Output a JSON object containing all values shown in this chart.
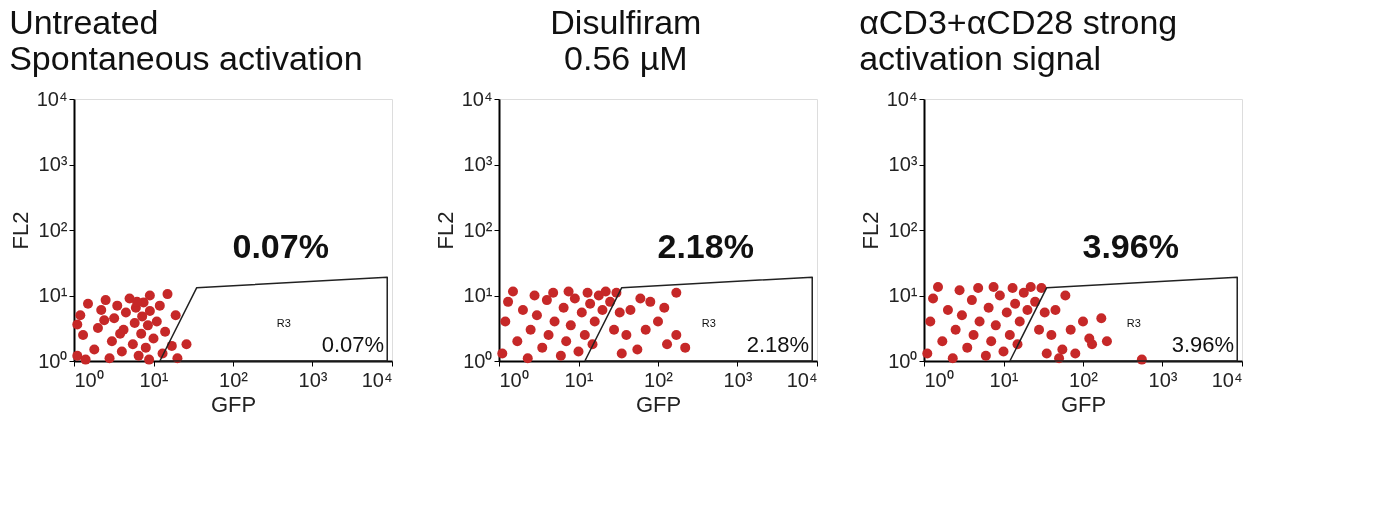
{
  "chart_data": [
    {
      "type": "scatter",
      "title": "Untreated\nSpontaneous activation",
      "xlabel": "GFP",
      "ylabel": "FL2",
      "log": "xy",
      "grid": false,
      "marker": "circle",
      "xlim": [
        1,
        10000
      ],
      "ylim": [
        1,
        10000
      ],
      "xticks": [
        {
          "value": 1,
          "label": "10⁰"
        },
        {
          "value": 10,
          "label": "10¹"
        },
        {
          "value": 100,
          "label": "10²"
        },
        {
          "value": 1000,
          "label": "10³"
        },
        {
          "value": 10000,
          "label": "10⁴"
        }
      ],
      "yticks": [
        {
          "value": 1,
          "label": "10⁰"
        },
        {
          "value": 10,
          "label": "10¹"
        },
        {
          "value": 100,
          "label": "10²"
        },
        {
          "value": 1000,
          "label": "10³"
        },
        {
          "value": 10000,
          "label": "10⁴"
        }
      ],
      "series": [
        {
          "color": "#c62828",
          "x": [
            1.1,
            1.3,
            1.2,
            1.5,
            1.8,
            2,
            2.2,
            2.5,
            2.8,
            3,
            3.2,
            3.5,
            4,
            4.2,
            4.5,
            5,
            5.5,
            5.8,
            6,
            6.5,
            7,
            7.2,
            7.5,
            8,
            8.5,
            9,
            9,
            10,
            11,
            12,
            13,
            14,
            15,
            17,
            19,
            26,
            20,
            1.1,
            1.4,
            2.4,
            3.8,
            6.2,
            8.8
          ],
          "values": [
            1.2,
            2.5,
            5,
            7.5,
            1.5,
            3.2,
            6,
            8.5,
            1.1,
            2,
            4.5,
            7,
            1.4,
            3,
            5.5,
            9,
            1.8,
            3.8,
            6.5,
            1.2,
            2.6,
            4.8,
            7.8,
            1.6,
            3.5,
            5.8,
            10,
            2.2,
            4,
            7,
            1.3,
            2.8,
            10.5,
            1.7,
            5,
            1.8,
            1.1,
            3.6,
            1.05,
            4.2,
            2.6,
            8,
            1.05
          ]
        }
      ],
      "annotations": [
        "0.07%",
        "R3",
        "0.07%"
      ]
    },
    {
      "type": "scatter",
      "title": "Disulfiram\n0.56 µM",
      "xlabel": "GFP",
      "ylabel": "FL2",
      "log": "xy",
      "grid": false,
      "marker": "circle",
      "xlim": [
        1,
        10000
      ],
      "ylim": [
        1,
        10000
      ],
      "xticks": [
        {
          "value": 1,
          "label": "10⁰"
        },
        {
          "value": 10,
          "label": "10¹"
        },
        {
          "value": 100,
          "label": "10²"
        },
        {
          "value": 1000,
          "label": "10³"
        },
        {
          "value": 10000,
          "label": "10⁴"
        }
      ],
      "yticks": [
        {
          "value": 1,
          "label": "10⁰"
        },
        {
          "value": 10,
          "label": "10¹"
        },
        {
          "value": 100,
          "label": "10²"
        },
        {
          "value": 1000,
          "label": "10³"
        },
        {
          "value": 10000,
          "label": "10⁴"
        }
      ],
      "series": [
        {
          "color": "#c62828",
          "x": [
            1.1,
            1.2,
            1.3,
            1.5,
            1.7,
            2,
            2.3,
            2.5,
            2.8,
            3,
            3.5,
            4,
            4.2,
            4.8,
            5,
            6,
            6.5,
            7,
            7.5,
            8,
            9,
            10,
            11,
            12,
            13,
            14,
            15,
            16,
            18,
            20,
            22,
            25,
            30,
            28,
            33,
            40,
            45,
            55,
            70,
            80,
            100,
            130,
            170,
            170,
            220,
            60,
            35,
            120
          ],
          "values": [
            1.3,
            4,
            8,
            11.5,
            2,
            6,
            1.1,
            3,
            10,
            5,
            1.6,
            8.5,
            2.5,
            11,
            4,
            1.2,
            6.5,
            2,
            11.5,
            3.5,
            9,
            1.4,
            5.5,
            2.5,
            11,
            7.5,
            1.8,
            4,
            10,
            6,
            11.5,
            8,
            11,
            3,
            5.5,
            2.5,
            6,
            1.5,
            3,
            8,
            4,
            1.8,
            11,
            2.5,
            1.6,
            9,
            1.3,
            6.5
          ]
        }
      ],
      "annotations": [
        "2.18%",
        "R3",
        "2.18%"
      ]
    },
    {
      "type": "scatter",
      "title": "αCD3+αCD28 strong\nactivation signal",
      "xlabel": "GFP",
      "ylabel": "FL2",
      "log": "xy",
      "grid": false,
      "marker": "circle",
      "xlim": [
        1,
        10000
      ],
      "ylim": [
        1,
        10000
      ],
      "xticks": [
        {
          "value": 1,
          "label": "10⁰"
        },
        {
          "value": 10,
          "label": "10¹"
        },
        {
          "value": 100,
          "label": "10²"
        },
        {
          "value": 1000,
          "label": "10³"
        },
        {
          "value": 10000,
          "label": "10⁴"
        }
      ],
      "yticks": [
        {
          "value": 1,
          "label": "10⁰"
        },
        {
          "value": 10,
          "label": "10¹"
        },
        {
          "value": 100,
          "label": "10²"
        },
        {
          "value": 1000,
          "label": "10³"
        },
        {
          "value": 10000,
          "label": "10⁴"
        }
      ],
      "series": [
        {
          "color": "#c62828",
          "x": [
            1.1,
            1.2,
            1.3,
            1.5,
            1.7,
            2,
            2.3,
            2.5,
            2.8,
            3,
            3.5,
            4,
            4.2,
            4.8,
            5,
            6,
            6.5,
            7,
            7.5,
            8,
            9,
            10,
            11,
            12,
            13,
            14,
            15,
            16,
            18,
            20,
            22,
            25,
            30,
            28,
            33,
            40,
            45,
            55,
            70,
            80,
            100,
            130,
            200,
            170,
            550,
            60,
            35,
            120,
            50
          ],
          "values": [
            1.3,
            4,
            9,
            13.5,
            2,
            6,
            1.1,
            3,
            12,
            5,
            1.6,
            8.5,
            2.5,
            13,
            4,
            1.2,
            6.5,
            2,
            13.5,
            3.5,
            10,
            1.4,
            5.5,
            2.5,
            13,
            7.5,
            1.8,
            4,
            11,
            6,
            13.5,
            8,
            13,
            3,
            5.5,
            2.5,
            6,
            1.5,
            3,
            1.3,
            4,
            1.8,
            2,
            4.5,
            1.05,
            10,
            1.3,
            2.2,
            1.1
          ]
        }
      ],
      "annotations": [
        "3.96%",
        "R3",
        "3.96%"
      ]
    }
  ]
}
